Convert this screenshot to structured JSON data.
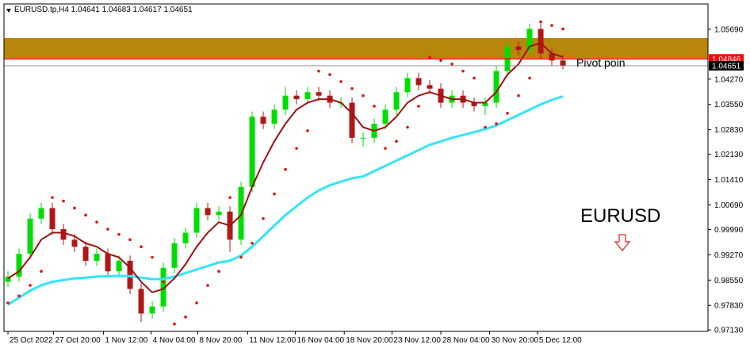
{
  "chart_data": {
    "type": "candlestick",
    "title": "EURUSD.tp,H4  1.04641 1.04683 1.04617 1.04651",
    "open": [
      0.985,
      0.9865,
      0.993,
      1.003,
      1.006,
      1.0,
      0.997,
      0.995,
      0.991,
      0.993,
      0.988,
      0.991,
      0.983,
      0.976,
      0.978,
      0.989,
      0.996,
      0.999,
      1.006,
      1.004,
      1.005,
      0.997,
      1.012,
      1.032,
      1.03,
      1.034,
      1.038,
      1.037,
      1.039,
      1.038,
      1.036,
      1.036,
      1.026,
      1.026,
      1.03,
      1.034,
      1.039,
      1.043,
      1.041,
      1.04,
      1.036,
      1.038,
      1.036,
      1.035,
      1.036,
      1.045,
      1.052,
      1.051,
      1.057,
      1.05,
      1.048
    ],
    "high": [
      0.988,
      0.9945,
      1.0045,
      1.0075,
      1.0075,
      1.0015,
      0.9985,
      0.9965,
      0.9945,
      0.9945,
      0.9925,
      0.9925,
      0.9845,
      0.9795,
      0.9905,
      0.9975,
      1.0005,
      1.0075,
      1.0075,
      1.0065,
      1.0065,
      1.0135,
      1.0335,
      1.0335,
      1.0355,
      1.0405,
      1.0395,
      1.0405,
      1.0405,
      1.0395,
      1.0375,
      1.0375,
      1.0275,
      1.0315,
      1.0355,
      1.0405,
      1.0445,
      1.0445,
      1.0425,
      1.0415,
      1.0395,
      1.0395,
      1.0375,
      1.0375,
      1.0465,
      1.0535,
      1.0535,
      1.0585,
      1.0585,
      1.0515,
      1.0495
    ],
    "low": [
      0.9835,
      0.985,
      0.9915,
      1.0015,
      0.9985,
      0.9955,
      0.9935,
      0.9895,
      0.9895,
      0.9865,
      0.9865,
      0.9815,
      0.9735,
      0.9745,
      0.9765,
      0.9875,
      0.9945,
      0.9975,
      1.0025,
      1.0025,
      0.9935,
      0.9955,
      1.0105,
      1.0285,
      1.0285,
      1.0325,
      1.0355,
      1.0355,
      1.0365,
      1.0345,
      1.0345,
      1.0245,
      1.0235,
      1.0245,
      1.0285,
      1.0325,
      1.0375,
      1.0395,
      1.0385,
      1.0345,
      1.0345,
      1.0345,
      1.0335,
      1.0325,
      1.0345,
      1.0435,
      1.0495,
      1.0495,
      1.0485,
      1.0465,
      1.0455
    ],
    "close": [
      0.9865,
      0.993,
      1.003,
      1.006,
      1.0,
      0.997,
      0.995,
      0.991,
      0.993,
      0.988,
      0.991,
      0.983,
      0.976,
      0.978,
      0.989,
      0.996,
      0.999,
      1.006,
      1.004,
      1.005,
      0.997,
      1.012,
      1.032,
      1.03,
      1.034,
      1.038,
      1.037,
      1.039,
      1.038,
      1.036,
      1.036,
      1.026,
      1.026,
      1.03,
      1.034,
      1.039,
      1.043,
      1.041,
      1.04,
      1.036,
      1.038,
      1.036,
      1.035,
      1.036,
      1.045,
      1.052,
      1.051,
      1.057,
      1.05,
      1.048,
      1.0465
    ],
    "up_color": "#00dd00",
    "down_color": "#b01818",
    "ma_fast": {
      "color": "#a01010",
      "values": [
        0.986,
        0.988,
        0.992,
        0.997,
        0.999,
        0.999,
        0.998,
        0.996,
        0.995,
        0.993,
        0.992,
        0.989,
        0.985,
        0.982,
        0.983,
        0.986,
        0.99,
        0.995,
        0.999,
        1.002,
        1.001,
        1.004,
        1.012,
        1.019,
        1.025,
        1.03,
        1.034,
        1.036,
        1.037,
        1.037,
        1.036,
        1.033,
        1.029,
        1.028,
        1.029,
        1.032,
        1.036,
        1.038,
        1.039,
        1.038,
        1.037,
        1.037,
        1.036,
        1.036,
        1.039,
        1.044,
        1.047,
        1.052,
        1.053,
        1.05,
        1.049
      ]
    },
    "ma_slow": {
      "color": "#33e5f5",
      "values": [
        0.9785,
        0.9805,
        0.9825,
        0.984,
        0.985,
        0.9855,
        0.986,
        0.9862,
        0.9865,
        0.9866,
        0.9867,
        0.9866,
        0.9862,
        0.9858,
        0.9858,
        0.9865,
        0.9875,
        0.9885,
        0.9895,
        0.9905,
        0.991,
        0.9925,
        0.995,
        0.998,
        1.001,
        1.004,
        1.0065,
        1.009,
        1.011,
        1.0125,
        1.0135,
        1.0145,
        1.015,
        1.0165,
        1.018,
        1.0195,
        1.021,
        1.0225,
        1.024,
        1.025,
        1.026,
        1.0268,
        1.0276,
        1.0285,
        1.0295,
        1.031,
        1.0325,
        1.034,
        1.0355,
        1.0368,
        1.0378
      ]
    },
    "sar": {
      "color": "#e01010",
      "values": [
        0.979,
        0.981,
        0.984,
        0.988,
        1.009,
        1.008,
        1.006,
        1.004,
        1.002,
        1.0,
        0.9985,
        0.997,
        0.995,
        0.992,
        0.985,
        0.973,
        0.975,
        0.979,
        0.984,
        0.988,
        1.009,
        0.992,
        0.996,
        1.003,
        1.01,
        1.017,
        1.023,
        1.028,
        1.045,
        1.044,
        1.042,
        1.04,
        1.038,
        1.035,
        1.023,
        1.025,
        1.029,
        1.035,
        1.049,
        1.048,
        1.047,
        1.045,
        1.043,
        1.029,
        1.03,
        1.033,
        1.038,
        1.043,
        1.059,
        1.058,
        1.057
      ]
    },
    "zone": {
      "ylim": [
        1.0487,
        1.0544
      ],
      "color": "#b8860b"
    },
    "price_lines": [
      {
        "value": 1.04846,
        "color": "#ff0000"
      },
      {
        "value": 1.04651,
        "color": "#000000"
      }
    ],
    "ylim": [
      0.9709,
      1.0641
    ],
    "yticks": [
      {
        "value": 1.0569,
        "label": "1.05690"
      },
      {
        "value": 1.0427,
        "label": "1.04270"
      },
      {
        "value": 1.0355,
        "label": "1.03550"
      },
      {
        "value": 1.0283,
        "label": "1.02830"
      },
      {
        "value": 1.0213,
        "label": "1.02130"
      },
      {
        "value": 1.0141,
        "label": "1.01410"
      },
      {
        "value": 1.0069,
        "label": "1.00690"
      },
      {
        "value": 0.9999,
        "label": "0.99990"
      },
      {
        "value": 0.9927,
        "label": "0.99270"
      },
      {
        "value": 0.9855,
        "label": "0.98550"
      },
      {
        "value": 0.9783,
        "label": "0.97830"
      },
      {
        "value": 0.9713,
        "label": "0.97130"
      }
    ],
    "xlim": [
      -0.36,
      63.07
    ],
    "xticks": [
      {
        "value": 0,
        "label": "25 Oct 2022"
      },
      {
        "value": 4.1,
        "label": "27 Oct 20:00"
      },
      {
        "value": 8.6,
        "label": "1 Nov 12:00"
      },
      {
        "value": 12.9,
        "label": "4 Nov 04:00"
      },
      {
        "value": 17.1,
        "label": "8 Nov 20:00"
      },
      {
        "value": 21.6,
        "label": "11 Nov 12:00"
      },
      {
        "value": 25.9,
        "label": "16 Nov 04:00"
      },
      {
        "value": 30.3,
        "label": "18 Nov 20:00"
      },
      {
        "value": 34.6,
        "label": "23 Nov 12:00"
      },
      {
        "value": 39,
        "label": "28 Nov 04:00"
      },
      {
        "value": 43.4,
        "label": "30 Nov 20:00"
      },
      {
        "value": 47.7,
        "label": "5 Dec 12:00"
      }
    ],
    "annotations": [
      "Pivot poin",
      "EURUSD"
    ]
  }
}
